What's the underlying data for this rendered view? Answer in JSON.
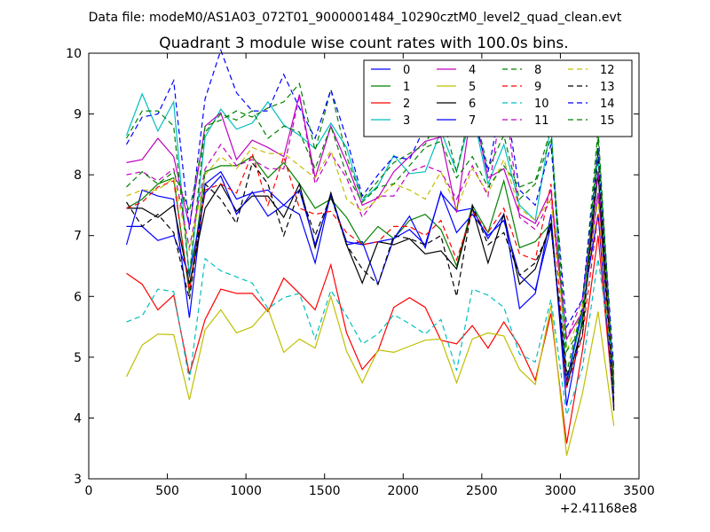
{
  "chart_data": {
    "type": "line",
    "suptitle": "Data file: modeM0/AS1A03_072T01_9000001484_10290cztM0_level2_quad_clean.evt",
    "title": "Quadrant 3 module wise count rates with 100.0s bins.",
    "xlabel": "",
    "ylabel": "",
    "x_offset_label": "+2.41168e8",
    "xlim": [
      0,
      3500
    ],
    "ylim": [
      3,
      10
    ],
    "xticks": [
      0,
      500,
      1000,
      1500,
      2000,
      2500,
      3000,
      3500
    ],
    "yticks": [
      3,
      4,
      5,
      6,
      7,
      8,
      9,
      10
    ],
    "x": [
      240,
      340,
      440,
      540,
      640,
      740,
      840,
      940,
      1040,
      1140,
      1240,
      1340,
      1440,
      1540,
      1640,
      1740,
      1840,
      1940,
      2040,
      2140,
      2240,
      2340,
      2440,
      2540,
      2640,
      2740,
      2840,
      2940,
      3040,
      3140,
      3240,
      3340
    ],
    "legend": {
      "position": "top-right",
      "columns": 4
    },
    "series": [
      {
        "name": "0",
        "color": "#0000ff",
        "style": "solid",
        "values": [
          6.85,
          7.75,
          7.65,
          7.6,
          5.65,
          7.85,
          8.05,
          7.6,
          7.7,
          7.75,
          7.5,
          7.35,
          6.55,
          7.7,
          6.85,
          6.9,
          6.2,
          6.95,
          7.1,
          6.85,
          7.7,
          7.4,
          7.45,
          6.95,
          7.35,
          5.8,
          6.05,
          7.35,
          4.2,
          5.6,
          7.7,
          4.4
        ]
      },
      {
        "name": "1",
        "color": "#008000",
        "style": "solid",
        "values": [
          7.45,
          7.6,
          7.85,
          7.95,
          6.05,
          8.05,
          8.15,
          8.15,
          8.3,
          7.95,
          8.2,
          7.85,
          7.45,
          7.6,
          7.3,
          6.85,
          7.15,
          6.95,
          7.25,
          7.35,
          7.1,
          6.5,
          7.5,
          7.05,
          7.9,
          6.8,
          6.9,
          7.2,
          4.6,
          5.7,
          8.0,
          4.3
        ]
      },
      {
        "name": "2",
        "color": "#ff0000",
        "style": "solid",
        "values": [
          6.38,
          6.2,
          5.78,
          6.02,
          4.72,
          5.62,
          6.12,
          6.05,
          6.05,
          5.75,
          6.3,
          6.05,
          5.78,
          6.52,
          5.4,
          4.8,
          5.1,
          5.82,
          5.98,
          5.82,
          5.28,
          5.22,
          5.52,
          5.15,
          5.58,
          5.18,
          4.62,
          5.72,
          3.58,
          5.1,
          7.0,
          4.18
        ]
      },
      {
        "name": "3",
        "color": "#00bfbf",
        "style": "solid",
        "values": [
          8.65,
          9.33,
          8.72,
          9.2,
          6.3,
          8.62,
          9.08,
          8.75,
          8.85,
          9.2,
          8.82,
          8.65,
          8.43,
          8.85,
          8.45,
          7.58,
          7.82,
          8.32,
          8.02,
          8.05,
          8.72,
          8.05,
          9.05,
          7.85,
          8.5,
          7.5,
          7.25,
          8.82,
          4.55,
          5.75,
          8.3,
          4.55
        ]
      },
      {
        "name": "4",
        "color": "#bf00bf",
        "style": "solid",
        "values": [
          8.2,
          8.25,
          8.6,
          8.3,
          7.15,
          8.8,
          9.02,
          8.25,
          8.57,
          8.45,
          8.3,
          9.32,
          7.95,
          8.8,
          8.2,
          7.5,
          7.62,
          8.05,
          8.3,
          8.55,
          8.62,
          7.38,
          9.2,
          7.95,
          8.1,
          7.35,
          7.2,
          7.75,
          5.3,
          5.75,
          7.7,
          4.55
        ]
      },
      {
        "name": "5",
        "color": "#bfbf00",
        "style": "solid",
        "values": [
          4.68,
          5.2,
          5.38,
          5.37,
          4.3,
          5.45,
          5.78,
          5.4,
          5.5,
          5.8,
          5.08,
          5.3,
          5.15,
          6.0,
          5.1,
          4.58,
          5.12,
          5.08,
          5.18,
          5.28,
          5.3,
          4.58,
          5.3,
          5.4,
          5.35,
          4.8,
          4.55,
          5.85,
          3.38,
          4.4,
          5.75,
          3.87
        ]
      },
      {
        "name": "6",
        "color": "#000000",
        "style": "solid",
        "values": [
          7.45,
          7.45,
          7.3,
          7.5,
          6.2,
          7.45,
          7.85,
          7.4,
          7.65,
          7.65,
          7.3,
          7.85,
          6.8,
          7.7,
          6.85,
          6.22,
          6.9,
          6.85,
          6.95,
          6.7,
          6.75,
          6.45,
          7.45,
          6.55,
          7.35,
          6.2,
          6.45,
          7.2,
          4.5,
          5.55,
          8.05,
          4.12
        ]
      },
      {
        "name": "7",
        "color": "#0000ff",
        "style": "solid",
        "values": [
          7.15,
          7.15,
          6.92,
          7.0,
          6.35,
          7.7,
          7.98,
          7.35,
          7.72,
          7.32,
          7.5,
          7.75,
          6.85,
          7.65,
          6.9,
          6.85,
          6.9,
          6.95,
          7.32,
          6.8,
          7.72,
          7.05,
          7.35,
          7.0,
          7.25,
          6.35,
          6.1,
          7.15,
          4.6,
          5.8,
          7.35,
          4.2
        ]
      },
      {
        "name": "8",
        "color": "#008000",
        "style": "dashed",
        "values": [
          8.6,
          9.05,
          9.05,
          8.8,
          6.35,
          8.8,
          8.9,
          9.05,
          8.95,
          9.1,
          9.2,
          9.5,
          8.4,
          9.4,
          8.3,
          7.6,
          7.9,
          8.2,
          8.35,
          8.5,
          9.05,
          8.05,
          9.2,
          8.1,
          8.65,
          7.6,
          7.85,
          8.6,
          4.75,
          5.85,
          8.75,
          4.5
        ]
      },
      {
        "name": "9",
        "color": "#ff0000",
        "style": "dashed",
        "values": [
          7.45,
          7.55,
          7.8,
          7.9,
          6.1,
          7.75,
          7.85,
          7.7,
          8.35,
          7.5,
          8.3,
          7.45,
          7.35,
          7.4,
          7.05,
          6.85,
          6.9,
          7.15,
          7.15,
          7.0,
          7.25,
          6.6,
          7.4,
          7.05,
          7.45,
          6.7,
          6.6,
          7.85,
          4.5,
          5.35,
          7.35,
          4.6
        ]
      },
      {
        "name": "10",
        "color": "#00bfbf",
        "style": "dashed",
        "values": [
          5.58,
          5.68,
          6.12,
          6.08,
          4.62,
          6.62,
          6.42,
          6.32,
          6.22,
          5.8,
          5.98,
          6.05,
          5.3,
          6.1,
          5.68,
          5.22,
          5.38,
          5.7,
          5.55,
          5.38,
          5.62,
          4.78,
          6.12,
          6.02,
          5.82,
          5.05,
          4.92,
          5.95,
          4.05,
          4.82,
          6.62,
          4.82
        ]
      },
      {
        "name": "11",
        "color": "#bf00bf",
        "style": "dashed",
        "values": [
          8.0,
          8.05,
          7.9,
          8.1,
          6.8,
          8.1,
          8.5,
          8.15,
          8.25,
          8.1,
          8.1,
          9.3,
          7.85,
          8.35,
          7.95,
          7.3,
          7.65,
          7.65,
          8.05,
          8.15,
          8.05,
          7.6,
          8.15,
          7.65,
          9.45,
          7.3,
          7.1,
          7.6,
          5.3,
          5.95,
          8.05,
          4.7
        ]
      },
      {
        "name": "12",
        "color": "#bfbf00",
        "style": "dashed",
        "values": [
          7.65,
          7.75,
          7.75,
          7.95,
          6.75,
          8.0,
          8.3,
          8.1,
          8.45,
          8.35,
          8.35,
          8.15,
          7.95,
          8.4,
          7.6,
          7.4,
          7.6,
          7.85,
          7.75,
          7.6,
          8.05,
          7.45,
          8.1,
          7.7,
          8.25,
          7.45,
          7.25,
          7.6,
          5.1,
          5.8,
          7.6,
          4.25
        ]
      },
      {
        "name": "13",
        "color": "#000000",
        "style": "dashed",
        "values": [
          7.55,
          7.15,
          7.35,
          7.05,
          5.95,
          7.85,
          7.6,
          7.2,
          8.2,
          7.85,
          7.0,
          7.75,
          7.0,
          7.65,
          6.85,
          6.45,
          6.2,
          7.0,
          6.95,
          6.85,
          7.0,
          6.0,
          7.5,
          6.85,
          7.05,
          6.35,
          6.55,
          7.15,
          4.7,
          5.35,
          8.35,
          4.2
        ]
      },
      {
        "name": "14",
        "color": "#0000ff",
        "style": "dashed",
        "values": [
          8.5,
          8.95,
          9.0,
          9.55,
          7.1,
          9.25,
          10.05,
          9.35,
          9.05,
          9.05,
          9.65,
          9.1,
          8.6,
          9.4,
          8.6,
          7.65,
          8.0,
          8.3,
          8.25,
          8.8,
          9.05,
          8.75,
          9.05,
          8.05,
          9.4,
          7.75,
          7.5,
          8.5,
          5.5,
          5.95,
          8.45,
          4.8
        ]
      },
      {
        "name": "15",
        "color": "#008000",
        "style": "dashed",
        "values": [
          7.8,
          8.05,
          7.85,
          8.05,
          7.4,
          8.7,
          9.0,
          8.9,
          9.05,
          8.6,
          8.8,
          8.7,
          8.1,
          8.8,
          8.0,
          7.55,
          7.8,
          7.85,
          8.15,
          8.45,
          8.55,
          7.95,
          8.3,
          7.8,
          8.15,
          7.8,
          7.9,
          8.75,
          5.1,
          5.5,
          8.6,
          4.55
        ]
      }
    ]
  }
}
